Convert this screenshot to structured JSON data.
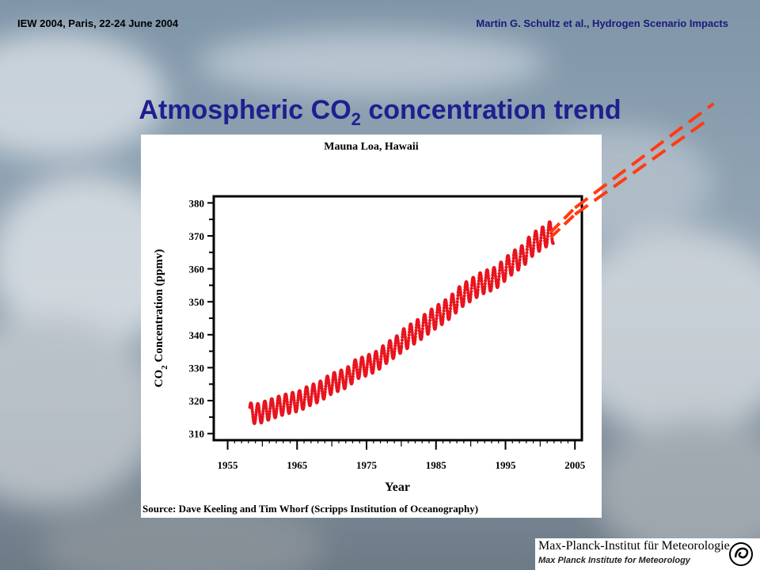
{
  "header": {
    "left": "IEW 2004, Paris, 22-24 June 2004",
    "right": "Martin G. Schultz et al., Hydrogen Scenario Impacts"
  },
  "slide_title": {
    "text": "Atmospheric CO",
    "sub": "2",
    "rest": " concentration trend"
  },
  "logo": {
    "name_de": "Max-Planck-Institut für Meteorologie",
    "name_en": "Max Planck Institute for Meteorology",
    "icon": "swirl-icon"
  },
  "colors": {
    "title": "#1f1f8f",
    "data": "#e8141e",
    "projection": "#ff3b12"
  },
  "chart_data": {
    "type": "scatter",
    "title": "Mauna Loa, Hawaii",
    "xlabel": "Year",
    "ylabel_main": "CO",
    "ylabel_sub": "2",
    "ylabel_rest": " Concentration (ppmv)",
    "xlim": [
      1953,
      2006
    ],
    "ylim": [
      308,
      382
    ],
    "x_ticks": [
      1955,
      1965,
      1975,
      1985,
      1995,
      2005
    ],
    "y_ticks": [
      310,
      320,
      330,
      340,
      350,
      360,
      370,
      380
    ],
    "source": "Source: Dave Keeling and Tim Whorf (Scripps Institution of Oceanography)",
    "series": [
      {
        "points": [
          [
            1958.5,
            316.2
          ],
          [
            1959.5,
            316.0
          ],
          [
            1960.5,
            316.9
          ],
          [
            1961.5,
            317.6
          ],
          [
            1962.5,
            318.4
          ],
          [
            1963.5,
            319.0
          ],
          [
            1964.5,
            319.5
          ],
          [
            1965.5,
            320.0
          ],
          [
            1966.5,
            321.3
          ],
          [
            1967.5,
            322.1
          ],
          [
            1968.5,
            323.0
          ],
          [
            1969.5,
            324.6
          ],
          [
            1970.5,
            325.6
          ],
          [
            1971.5,
            326.3
          ],
          [
            1972.5,
            327.4
          ],
          [
            1973.5,
            329.6
          ],
          [
            1974.5,
            330.2
          ],
          [
            1975.5,
            331.1
          ],
          [
            1976.5,
            332.0
          ],
          [
            1977.5,
            333.8
          ],
          [
            1978.5,
            335.4
          ],
          [
            1979.5,
            336.8
          ],
          [
            1980.5,
            338.7
          ],
          [
            1981.5,
            340.1
          ],
          [
            1982.5,
            341.4
          ],
          [
            1983.5,
            343.0
          ],
          [
            1984.5,
            344.6
          ],
          [
            1985.5,
            346.0
          ],
          [
            1986.5,
            347.4
          ],
          [
            1987.5,
            349.2
          ],
          [
            1988.5,
            351.5
          ],
          [
            1989.5,
            352.9
          ],
          [
            1990.5,
            354.2
          ],
          [
            1991.5,
            355.6
          ],
          [
            1992.5,
            356.4
          ],
          [
            1993.5,
            357.1
          ],
          [
            1994.5,
            358.9
          ],
          [
            1995.5,
            360.9
          ],
          [
            1996.5,
            362.6
          ],
          [
            1997.5,
            363.8
          ],
          [
            1998.5,
            366.6
          ],
          [
            1999.5,
            368.3
          ],
          [
            2000.5,
            369.5
          ],
          [
            2001.5,
            371.1
          ]
        ]
      }
    ],
    "seasonal_amplitude": 3.2,
    "projections": [
      {
        "x": [
          2001.5,
          2005.0
        ],
        "y": [
          371.1,
          378.5
        ],
        "note": "upper"
      },
      {
        "x": [
          2001.5,
          2005.0
        ],
        "y": [
          369.5,
          376.5
        ],
        "note": "lower"
      }
    ]
  }
}
